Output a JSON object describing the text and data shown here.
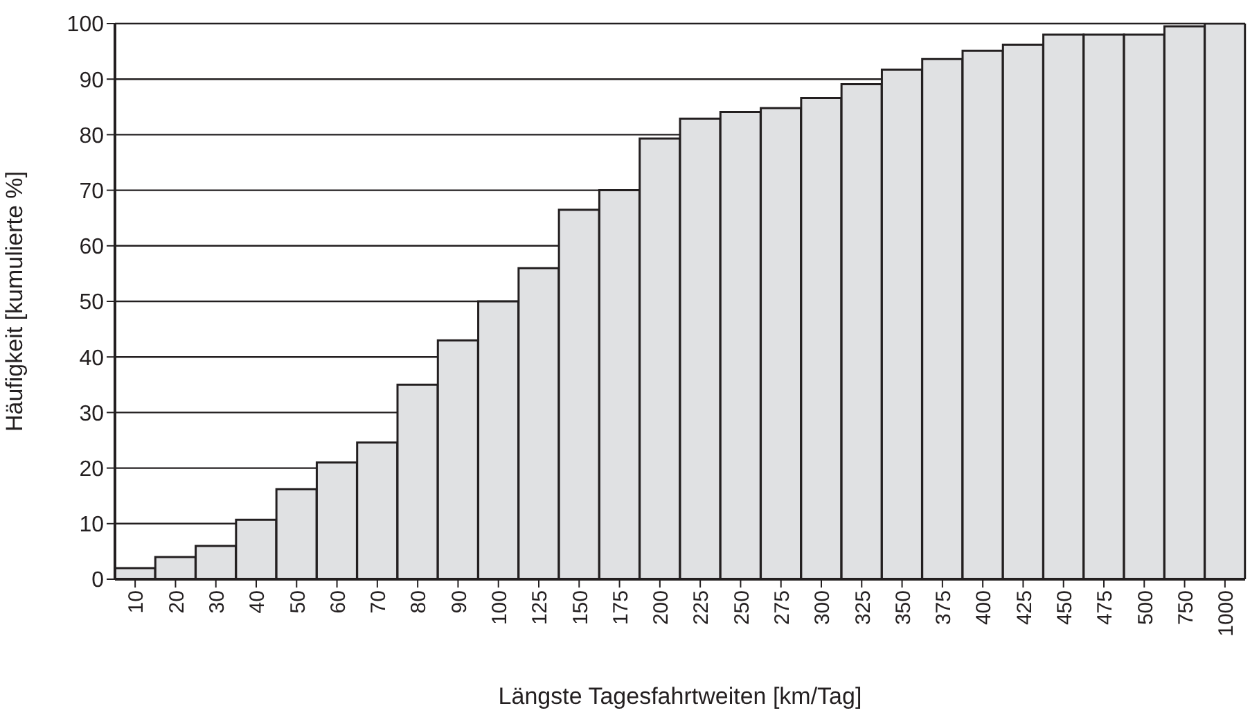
{
  "chart_data": {
    "type": "bar",
    "xlabel": "Längste Tagesfahrtweiten [km/Tag]",
    "ylabel": "Häufigkeit [kumulierte %]",
    "categories": [
      "10",
      "20",
      "30",
      "40",
      "50",
      "60",
      "70",
      "80",
      "90",
      "100",
      "125",
      "150",
      "175",
      "200",
      "225",
      "250",
      "275",
      "300",
      "325",
      "350",
      "375",
      "400",
      "425",
      "450",
      "475",
      "500",
      "750",
      "1000"
    ],
    "values": [
      2,
      4,
      6,
      10.7,
      16.2,
      21,
      24.6,
      35,
      43,
      50,
      56,
      66.5,
      70,
      79.3,
      82.9,
      84.1,
      84.8,
      86.6,
      89.1,
      91.7,
      93.6,
      95.1,
      96.2,
      98,
      98,
      98,
      99.5,
      100
    ],
    "color": "#e0e1e3",
    "ylim": [
      0,
      100
    ],
    "yticks": [
      0,
      10,
      20,
      30,
      40,
      50,
      60,
      70,
      80,
      90,
      100
    ],
    "grid": "y"
  }
}
